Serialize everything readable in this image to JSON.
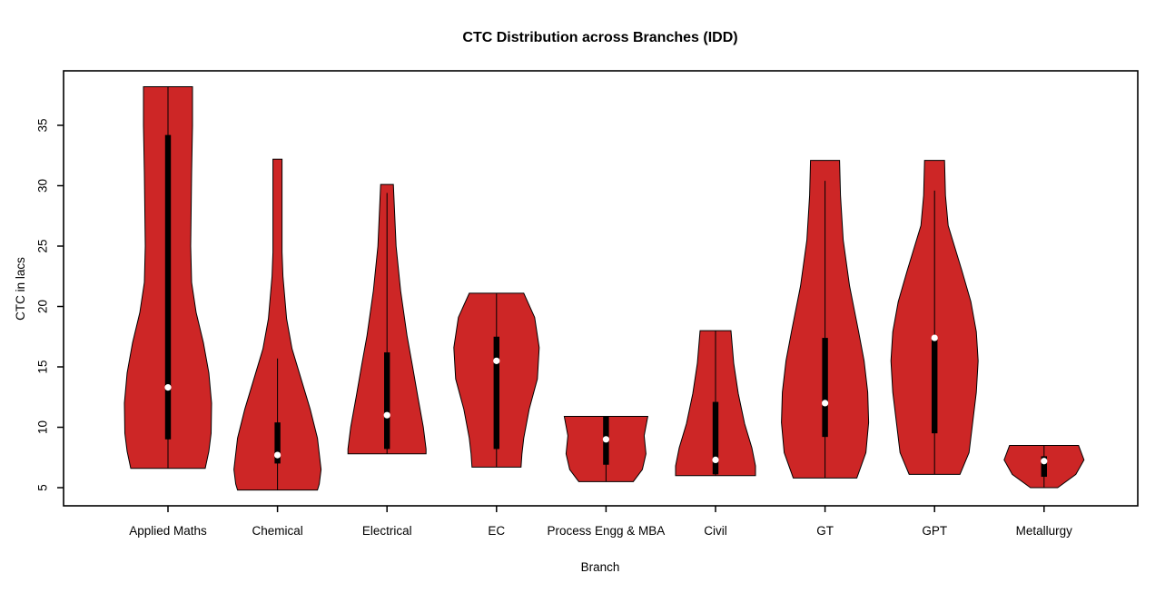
{
  "chart_data": {
    "type": "violin",
    "title": "CTC Distribution across Branches (IDD)",
    "xlabel": "Branch",
    "ylabel": "CTC in lacs",
    "ylim": [
      3.5,
      39.5
    ],
    "yticks": [
      5,
      10,
      15,
      20,
      25,
      30,
      35
    ],
    "grid": "off",
    "legend": "none",
    "fill_color": "#CD2626",
    "outline_color": "#000000",
    "box_color": "#000000",
    "median_dot_color": "#FFFFFF",
    "categories": [
      "Applied Maths",
      "Chemical",
      "Electrical",
      "EC",
      "Process Engg & MBA",
      "Civil",
      "GT",
      "GPT",
      "Metallurgy"
    ],
    "violins": [
      {
        "branch": "Applied Maths",
        "min": 6.6,
        "max": 38.2,
        "q1": 9.0,
        "q3": 34.2,
        "median": 13.3,
        "whisker_low": 6.6,
        "whisker_high": 38.2,
        "profile": [
          [
            38.2,
            27
          ],
          [
            35,
            27
          ],
          [
            31,
            26
          ],
          [
            28,
            25.5
          ],
          [
            25,
            25
          ],
          [
            22,
            26
          ],
          [
            19.5,
            31
          ],
          [
            17,
            39
          ],
          [
            14.5,
            45
          ],
          [
            12,
            48
          ],
          [
            9.5,
            47.5
          ],
          [
            8,
            45
          ],
          [
            6.6,
            41
          ]
        ]
      },
      {
        "branch": "Chemical",
        "min": 4.8,
        "max": 32.2,
        "q1": 7.0,
        "q3": 10.4,
        "median": 7.7,
        "whisker_low": 4.8,
        "whisker_high": 15.7,
        "profile": [
          [
            32.2,
            5
          ],
          [
            29,
            5
          ],
          [
            24.5,
            5
          ],
          [
            22.5,
            6
          ],
          [
            19,
            10
          ],
          [
            16.5,
            16
          ],
          [
            14,
            26
          ],
          [
            11.5,
            36
          ],
          [
            9.1,
            44
          ],
          [
            6.5,
            48
          ],
          [
            5.3,
            46
          ],
          [
            4.8,
            44
          ]
        ]
      },
      {
        "branch": "Electrical",
        "min": 7.8,
        "max": 30.1,
        "q1": 8.2,
        "q3": 16.2,
        "median": 11.0,
        "whisker_low": 7.8,
        "whisker_high": 29.4,
        "profile": [
          [
            30.1,
            7
          ],
          [
            25,
            10
          ],
          [
            21.3,
            15
          ],
          [
            17.6,
            22
          ],
          [
            15.1,
            28
          ],
          [
            12.5,
            34
          ],
          [
            10,
            40
          ],
          [
            8.2,
            43
          ],
          [
            7.8,
            43
          ]
        ]
      },
      {
        "branch": "EC",
        "min": 6.7,
        "max": 21.1,
        "q1": 8.2,
        "q3": 17.5,
        "median": 15.5,
        "whisker_low": 6.7,
        "whisker_high": 21.1,
        "profile": [
          [
            21.1,
            30
          ],
          [
            19.1,
            42
          ],
          [
            16.6,
            47
          ],
          [
            14,
            45
          ],
          [
            11.5,
            36
          ],
          [
            9.1,
            30
          ],
          [
            7.8,
            28
          ],
          [
            6.7,
            27
          ]
        ]
      },
      {
        "branch": "Process Engg & MBA",
        "min": 5.5,
        "max": 10.9,
        "q1": 6.9,
        "q3": 10.9,
        "median": 9.0,
        "whisker_low": 5.5,
        "whisker_high": 10.9,
        "profile": [
          [
            10.9,
            46
          ],
          [
            9.3,
            42
          ],
          [
            7.8,
            44
          ],
          [
            6.5,
            40
          ],
          [
            5.5,
            30
          ]
        ]
      },
      {
        "branch": "Civil",
        "min": 6.0,
        "max": 18.0,
        "q1": 6.1,
        "q3": 12.1,
        "median": 7.3,
        "whisker_low": 6.0,
        "whisker_high": 18.0,
        "profile": [
          [
            18,
            17
          ],
          [
            15.3,
            20
          ],
          [
            12.8,
            25
          ],
          [
            10.3,
            32
          ],
          [
            8.3,
            40
          ],
          [
            6.8,
            44
          ],
          [
            6.0,
            44
          ]
        ]
      },
      {
        "branch": "GT",
        "min": 5.8,
        "max": 32.1,
        "q1": 9.2,
        "q3": 17.4,
        "median": 12.0,
        "whisker_low": 5.8,
        "whisker_high": 30.4,
        "profile": [
          [
            32.1,
            16
          ],
          [
            29.2,
            17
          ],
          [
            25.5,
            20
          ],
          [
            21.7,
            27
          ],
          [
            17.9,
            37
          ],
          [
            15.5,
            43
          ],
          [
            12.9,
            47
          ],
          [
            10.4,
            48
          ],
          [
            7.9,
            45
          ],
          [
            5.8,
            35
          ]
        ]
      },
      {
        "branch": "GPT",
        "min": 6.1,
        "max": 32.1,
        "q1": 9.5,
        "q3": 17.4,
        "median": 17.4,
        "whisker_low": 6.1,
        "whisker_high": 29.6,
        "profile": [
          [
            32.1,
            11
          ],
          [
            29.2,
            12
          ],
          [
            26.7,
            15
          ],
          [
            23,
            30
          ],
          [
            20.4,
            40
          ],
          [
            17.9,
            46
          ],
          [
            15.5,
            48
          ],
          [
            12.9,
            46
          ],
          [
            10.4,
            42
          ],
          [
            7.9,
            38
          ],
          [
            6.1,
            28
          ]
        ]
      },
      {
        "branch": "Metallurgy",
        "min": 5.0,
        "max": 8.5,
        "q1": 5.9,
        "q3": 7.6,
        "median": 7.2,
        "whisker_low": 5.0,
        "whisker_high": 8.5,
        "profile": [
          [
            8.5,
            38
          ],
          [
            7.3,
            44
          ],
          [
            6.1,
            35
          ],
          [
            5.0,
            15
          ]
        ]
      }
    ]
  }
}
